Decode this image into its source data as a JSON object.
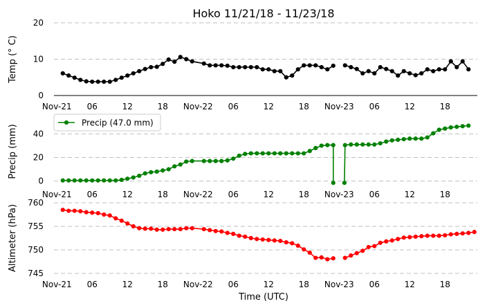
{
  "chart_data": {
    "title": "Hoko 11/21/18 - 11/23/18",
    "type": "line",
    "xlabel": "Time (UTC)",
    "x_unit": "hours since Nov-21 00:00 UTC",
    "xlim": [
      -0.5,
      71.5
    ],
    "x_ticks": [
      {
        "value": 0,
        "label": "Nov-21"
      },
      {
        "value": 6,
        "label": "06"
      },
      {
        "value": 12,
        "label": "12"
      },
      {
        "value": 18,
        "label": "18"
      },
      {
        "value": 24,
        "label": "Nov-22"
      },
      {
        "value": 30,
        "label": "06"
      },
      {
        "value": 36,
        "label": "12"
      },
      {
        "value": 42,
        "label": "18"
      },
      {
        "value": 48,
        "label": "Nov-23"
      },
      {
        "value": 54,
        "label": "06"
      },
      {
        "value": 60,
        "label": "12"
      },
      {
        "value": 66,
        "label": "18"
      }
    ],
    "panels": [
      {
        "name": "temperature",
        "ylabel": "Temp ($^\\circ$C)",
        "ylabel_display": "Temp (° C)",
        "ylim": [
          0,
          20
        ],
        "y_ticks": [
          0,
          10,
          20
        ],
        "grid": true,
        "color": "#000000",
        "legend": null,
        "series": [
          {
            "name": "Temp",
            "points": [
              [
                1,
                6.1
              ],
              [
                2,
                5.5
              ],
              [
                3,
                4.9
              ],
              [
                4,
                4.3
              ],
              [
                5,
                3.9
              ],
              [
                6,
                3.8
              ],
              [
                7,
                3.8
              ],
              [
                8,
                3.8
              ],
              [
                9,
                3.8
              ],
              [
                10,
                4.3
              ],
              [
                11,
                4.9
              ],
              [
                12,
                5.5
              ],
              [
                13,
                6.1
              ],
              [
                14,
                6.7
              ],
              [
                15,
                7.3
              ],
              [
                16,
                7.8
              ],
              [
                17,
                7.9
              ],
              [
                18,
                8.7
              ],
              [
                19,
                9.9
              ],
              [
                20,
                9.3
              ],
              [
                21,
                10.6
              ],
              [
                22,
                10.0
              ],
              [
                23,
                9.4
              ],
              [
                25,
                8.8
              ],
              [
                26,
                8.3
              ],
              [
                27,
                8.3
              ],
              [
                28,
                8.3
              ],
              [
                29,
                8.2
              ],
              [
                30,
                7.8
              ],
              [
                31,
                7.8
              ],
              [
                32,
                7.8
              ],
              [
                33,
                7.8
              ],
              [
                34,
                7.8
              ],
              [
                35,
                7.2
              ],
              [
                36,
                7.2
              ],
              [
                37,
                6.7
              ],
              [
                38,
                6.7
              ],
              [
                39,
                5.0
              ],
              [
                40,
                5.5
              ],
              [
                41,
                7.2
              ],
              [
                42,
                8.3
              ],
              [
                43,
                8.3
              ],
              [
                44,
                8.3
              ],
              [
                45,
                7.8
              ],
              [
                46,
                7.2
              ],
              [
                47,
                8.2
              ],
              null,
              [
                49,
                8.3
              ],
              [
                50,
                7.8
              ],
              [
                51,
                7.3
              ],
              [
                52,
                6.1
              ],
              [
                53,
                6.7
              ],
              [
                54,
                6.1
              ],
              [
                55,
                7.8
              ],
              [
                56,
                7.3
              ],
              [
                57,
                6.7
              ],
              [
                58,
                5.5
              ],
              [
                59,
                6.7
              ],
              [
                60,
                6.1
              ],
              [
                61,
                5.6
              ],
              [
                62,
                6.1
              ],
              [
                63,
                7.2
              ],
              [
                64,
                6.7
              ],
              [
                65,
                7.2
              ],
              [
                66,
                7.2
              ],
              [
                67,
                9.4
              ],
              [
                68,
                7.8
              ],
              [
                69,
                9.4
              ],
              [
                70,
                7.2
              ]
            ]
          }
        ]
      },
      {
        "name": "precipitation",
        "ylabel": "Precip (mm)",
        "ylim": [
          -2,
          52
        ],
        "y_ticks": [
          0,
          20,
          40
        ],
        "grid": true,
        "color": "#008000",
        "legend": {
          "label": "Precip (47.0 mm)",
          "position": "top-left"
        },
        "series": [
          {
            "name": "Precip (47.0 mm)",
            "points": [
              [
                1,
                0.5
              ],
              [
                2,
                0.5
              ],
              [
                3,
                0.5
              ],
              [
                4,
                0.5
              ],
              [
                5,
                0.5
              ],
              [
                6,
                0.5
              ],
              [
                7,
                0.5
              ],
              [
                8,
                0.5
              ],
              [
                9,
                0.5
              ],
              [
                10,
                0.5
              ],
              [
                11,
                1.0
              ],
              [
                12,
                2.0
              ],
              [
                13,
                3.0
              ],
              [
                14,
                4.5
              ],
              [
                15,
                6.5
              ],
              [
                16,
                7.5
              ],
              [
                17,
                8.0
              ],
              [
                18,
                9.0
              ],
              [
                19,
                10.0
              ],
              [
                20,
                12.5
              ],
              [
                21,
                14.0
              ],
              [
                22,
                16.5
              ],
              [
                23,
                17.0
              ],
              [
                25,
                17.0
              ],
              [
                26,
                17.0
              ],
              [
                27,
                17.0
              ],
              [
                28,
                17.0
              ],
              [
                29,
                17.5
              ],
              [
                30,
                19.0
              ],
              [
                31,
                21.5
              ],
              [
                32,
                23.0
              ],
              [
                33,
                23.5
              ],
              [
                34,
                23.5
              ],
              [
                35,
                23.5
              ],
              [
                36,
                23.5
              ],
              [
                37,
                23.5
              ],
              [
                38,
                23.5
              ],
              [
                39,
                23.5
              ],
              [
                40,
                23.5
              ],
              [
                41,
                23.5
              ],
              [
                42,
                23.5
              ],
              [
                43,
                25.5
              ],
              [
                44,
                28.0
              ],
              [
                45,
                30.0
              ],
              [
                46,
                30.5
              ],
              [
                47,
                30.5
              ],
              [
                47.0,
                -1.5
              ],
              null,
              [
                48.9,
                -1.5
              ],
              [
                49,
                30.5
              ],
              [
                50,
                31.0
              ],
              [
                51,
                31.0
              ],
              [
                52,
                31.0
              ],
              [
                53,
                31.0
              ],
              [
                54,
                31.0
              ],
              [
                55,
                32.0
              ],
              [
                56,
                33.5
              ],
              [
                57,
                34.5
              ],
              [
                58,
                35.0
              ],
              [
                59,
                35.5
              ],
              [
                60,
                36.0
              ],
              [
                61,
                36.0
              ],
              [
                62,
                36.0
              ],
              [
                63,
                37.0
              ],
              [
                64,
                40.5
              ],
              [
                65,
                43.5
              ],
              [
                66,
                44.5
              ],
              [
                67,
                45.5
              ],
              [
                68,
                46.0
              ],
              [
                69,
                46.5
              ],
              [
                70,
                47.0
              ]
            ]
          }
        ]
      },
      {
        "name": "altimeter",
        "ylabel": "Altimeter (hPa)",
        "ylim": [
          745,
          760
        ],
        "y_ticks": [
          745,
          750,
          755,
          760
        ],
        "grid": true,
        "color": "#ff0000",
        "legend": null,
        "series": [
          {
            "name": "Altimeter",
            "points": [
              [
                1,
                758.5
              ],
              [
                2,
                758.3
              ],
              [
                3,
                758.3
              ],
              [
                4,
                758.2
              ],
              [
                5,
                758.0
              ],
              [
                6,
                757.9
              ],
              [
                7,
                757.8
              ],
              [
                8,
                757.5
              ],
              [
                9,
                757.3
              ],
              [
                10,
                756.7
              ],
              [
                11,
                756.2
              ],
              [
                12,
                755.6
              ],
              [
                13,
                755.0
              ],
              [
                14,
                754.6
              ],
              [
                15,
                754.5
              ],
              [
                16,
                754.5
              ],
              [
                17,
                754.3
              ],
              [
                18,
                754.3
              ],
              [
                19,
                754.4
              ],
              [
                20,
                754.4
              ],
              [
                21,
                754.4
              ],
              [
                22,
                754.6
              ],
              [
                23,
                754.6
              ],
              [
                25,
                754.4
              ],
              [
                26,
                754.2
              ],
              [
                27,
                754.0
              ],
              [
                28,
                753.9
              ],
              [
                29,
                753.6
              ],
              [
                30,
                753.4
              ],
              [
                31,
                753.0
              ],
              [
                32,
                752.8
              ],
              [
                33,
                752.5
              ],
              [
                34,
                752.3
              ],
              [
                35,
                752.2
              ],
              [
                36,
                752.1
              ],
              [
                37,
                752.0
              ],
              [
                38,
                751.9
              ],
              [
                39,
                751.6
              ],
              [
                40,
                751.4
              ],
              [
                41,
                750.9
              ],
              [
                42,
                750.1
              ],
              [
                43,
                749.4
              ],
              [
                44,
                748.3
              ],
              [
                45,
                748.4
              ],
              [
                46,
                748.0
              ],
              [
                47,
                748.2
              ],
              null,
              [
                49,
                748.3
              ],
              [
                50,
                748.8
              ],
              [
                51,
                749.3
              ],
              [
                52,
                749.8
              ],
              [
                53,
                750.6
              ],
              [
                54,
                750.8
              ],
              [
                55,
                751.5
              ],
              [
                56,
                751.8
              ],
              [
                57,
                752.0
              ],
              [
                58,
                752.3
              ],
              [
                59,
                752.6
              ],
              [
                60,
                752.7
              ],
              [
                61,
                752.8
              ],
              [
                62,
                752.9
              ],
              [
                63,
                753.0
              ],
              [
                64,
                753.0
              ],
              [
                65,
                753.0
              ],
              [
                66,
                753.1
              ],
              [
                67,
                753.3
              ],
              [
                68,
                753.4
              ],
              [
                69,
                753.5
              ],
              [
                70,
                753.6
              ],
              [
                71,
                753.8
              ]
            ]
          }
        ]
      }
    ]
  }
}
